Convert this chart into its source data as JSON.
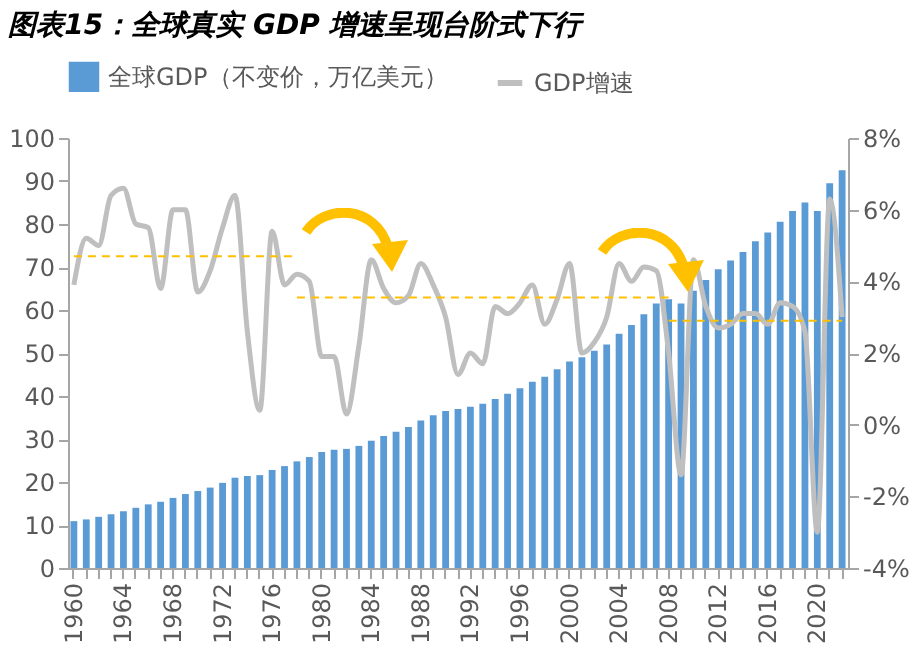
{
  "chart_data": {
    "type": "bar",
    "title": "图表15：全球真实 GDP 增速呈现台阶式下行",
    "categories": [
      "1960",
      null,
      null,
      null,
      "1964",
      null,
      null,
      null,
      "1968",
      null,
      null,
      null,
      "1972",
      null,
      null,
      null,
      "1976",
      null,
      null,
      null,
      "1980",
      null,
      null,
      null,
      "1984",
      null,
      null,
      null,
      "1988",
      null,
      null,
      null,
      "1992",
      null,
      null,
      null,
      "1996",
      null,
      null,
      null,
      "2000",
      null,
      null,
      null,
      "2004",
      null,
      null,
      null,
      "2008",
      null,
      null,
      null,
      "2012",
      null,
      null,
      null,
      "2016",
      null,
      null,
      null,
      "2020",
      null,
      null
    ],
    "series": [
      {
        "name": "全球GDP（不变价，万亿美元）",
        "color": "#5b9bd5",
        "values": [
          10.9,
          11.3,
          11.9,
          12.5,
          13.2,
          14.0,
          14.8,
          15.4,
          16.3,
          17.2,
          17.9,
          18.7,
          19.8,
          21.0,
          21.4,
          21.6,
          22.8,
          23.7,
          24.8,
          25.8,
          27.0,
          27.5,
          27.7,
          28.4,
          29.6,
          30.7,
          31.7,
          32.8,
          34.3,
          35.5,
          36.5,
          37.0,
          37.5,
          38.2,
          39.3,
          40.5,
          41.8,
          43.3,
          44.5,
          46.2,
          48.0,
          49.0,
          50.5,
          52.0,
          54.5,
          56.5,
          59.0,
          61.5,
          62.5,
          61.5,
          64.5,
          67.0,
          69.5,
          71.5,
          73.5,
          76.0,
          78.0,
          80.5,
          83.0,
          85.0,
          83.0,
          89.5,
          92.5
        ]
      },
      {
        "name": "GDP增速",
        "type": "line",
        "axis": "y2",
        "color": "#bfbfbf",
        "line_style": "solid",
        "values": [
          3.9,
          5.2,
          5.0,
          6.4,
          6.6,
          5.6,
          5.5,
          3.8,
          6.0,
          6.0,
          3.7,
          4.3,
          5.5,
          6.4,
          2.6,
          0.4,
          5.4,
          3.9,
          4.2,
          4.0,
          1.9,
          1.9,
          0.3,
          2.2,
          4.6,
          3.8,
          3.4,
          3.6,
          4.5,
          3.9,
          3.0,
          1.4,
          2.0,
          1.7,
          3.3,
          3.1,
          3.4,
          3.9,
          2.8,
          3.5,
          4.5,
          2.0,
          2.3,
          3.0,
          4.5,
          4.0,
          4.4,
          4.3,
          2.0,
          -1.4,
          4.6,
          3.3,
          2.7,
          2.8,
          3.1,
          3.1,
          2.8,
          3.4,
          3.3,
          2.6,
          -3.0,
          6.3,
          3.0
        ]
      },
      {
        "type": "line",
        "axis": "y2",
        "color": "#ffc000",
        "line_style": "dashed",
        "values": [
          4.7,
          4.7,
          4.7,
          4.7,
          4.7,
          4.7,
          4.7,
          4.7,
          4.7,
          4.7,
          4.7,
          4.7,
          4.7,
          4.7,
          4.7,
          4.7,
          4.7,
          4.7,
          4.7,
          null,
          null,
          null,
          null,
          null,
          null,
          null,
          null,
          null,
          null,
          null,
          null,
          null,
          null,
          null,
          null,
          null,
          null,
          null,
          null,
          null,
          null,
          null,
          null,
          null,
          null,
          null,
          null,
          null,
          null,
          null,
          null,
          null,
          null,
          null,
          null,
          null,
          null,
          null,
          null,
          null,
          null,
          null,
          null
        ]
      },
      {
        "type": "line",
        "axis": "y2",
        "color": "#ffc000",
        "line_style": "dashed",
        "values": [
          null,
          null,
          null,
          null,
          null,
          null,
          null,
          null,
          null,
          null,
          null,
          null,
          null,
          null,
          null,
          null,
          null,
          null,
          3.55,
          3.55,
          3.55,
          3.55,
          3.55,
          3.55,
          3.55,
          3.55,
          3.55,
          3.55,
          3.55,
          3.55,
          3.55,
          3.55,
          3.55,
          3.55,
          3.55,
          3.55,
          3.55,
          3.55,
          3.55,
          3.55,
          3.55,
          3.55,
          3.55,
          3.55,
          3.55,
          3.55,
          3.55,
          3.55,
          3.55,
          null,
          null,
          null,
          null,
          null,
          null,
          null,
          null,
          null,
          null,
          null,
          null,
          null,
          null
        ]
      },
      {
        "type": "line",
        "axis": "y2",
        "color": "#ffc000",
        "line_style": "dashed",
        "values": [
          null,
          null,
          null,
          null,
          null,
          null,
          null,
          null,
          null,
          null,
          null,
          null,
          null,
          null,
          null,
          null,
          null,
          null,
          null,
          null,
          null,
          null,
          null,
          null,
          null,
          null,
          null,
          null,
          null,
          null,
          null,
          null,
          null,
          null,
          null,
          null,
          null,
          null,
          null,
          null,
          null,
          null,
          null,
          null,
          null,
          null,
          null,
          null,
          2.9,
          2.9,
          2.9,
          2.9,
          2.9,
          2.9,
          2.9,
          2.9,
          2.9,
          2.9,
          2.9,
          2.9,
          2.9,
          2.9,
          2.9
        ]
      }
    ],
    "ylim": [
      0,
      100
    ],
    "yticks": [
      0,
      10,
      20,
      30,
      40,
      50,
      60,
      70,
      80,
      90,
      100
    ],
    "y2lim": [
      -4,
      8
    ],
    "y2ticks": [
      {
        "value": -4,
        "label": "-4%"
      },
      {
        "value": -2,
        "label": "-2%"
      },
      {
        "value": 0,
        "label": "0%"
      },
      {
        "value": 2,
        "label": "2%"
      },
      {
        "value": 4,
        "label": "4%"
      },
      {
        "value": 6,
        "label": "6%"
      },
      {
        "value": 8,
        "label": "8%"
      }
    ],
    "grid": false,
    "legend": "top",
    "marker": "none"
  }
}
